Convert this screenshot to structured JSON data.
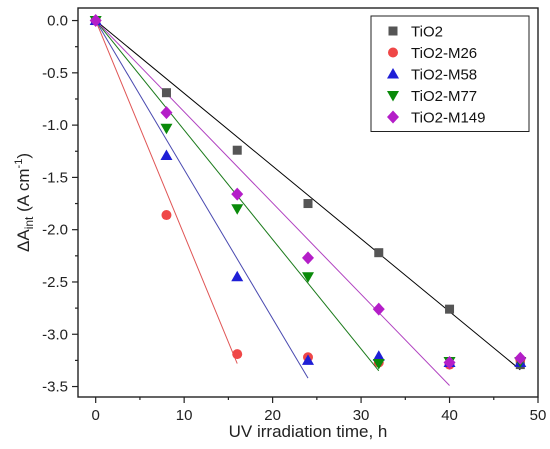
{
  "chart_data": {
    "type": "scatter",
    "xlabel": "UV irradiation time, h",
    "ylabel": {
      "prefix": "ΔA",
      "subscript": "int",
      "units": " (A cm",
      "superscript": "-1",
      "close": ")"
    },
    "xlim": [
      -2,
      50
    ],
    "ylim": [
      -3.6,
      0.12
    ],
    "x_ticks": [
      0,
      10,
      20,
      30,
      40,
      50
    ],
    "y_ticks": [
      0.0,
      -0.5,
      -1.0,
      -1.5,
      -2.0,
      -2.5,
      -3.0,
      -3.5
    ],
    "x_tick_labels": [
      "0",
      "10",
      "20",
      "30",
      "40",
      "50"
    ],
    "y_tick_labels": [
      "0.0",
      "-0.5",
      "-1.0",
      "-1.5",
      "-2.0",
      "-2.5",
      "-3.0",
      "-3.5"
    ],
    "legend_position": "top-right",
    "grid": false,
    "series": [
      {
        "name": "TiO2",
        "marker": "square",
        "color": "#555555",
        "fit_color": "#000000",
        "points": [
          [
            0,
            0.0
          ],
          [
            8,
            -0.69
          ],
          [
            16,
            -1.24
          ],
          [
            24,
            -1.75
          ],
          [
            32,
            -2.22
          ],
          [
            40,
            -2.76
          ],
          [
            48,
            -3.29
          ]
        ],
        "fit_line": [
          [
            0,
            0.0
          ],
          [
            48,
            -3.34
          ]
        ]
      },
      {
        "name": "TiO2-M26",
        "marker": "circle",
        "color": "#ef4747",
        "fit_color": "#e05555",
        "points": [
          [
            0,
            0.0
          ],
          [
            8,
            -1.86
          ],
          [
            16,
            -3.19
          ],
          [
            24,
            -3.22
          ],
          [
            32,
            -3.27
          ],
          [
            40,
            -3.29
          ],
          [
            48,
            -3.24
          ]
        ],
        "fit_line": [
          [
            0,
            0.0
          ],
          [
            16,
            -3.28
          ]
        ]
      },
      {
        "name": "TiO2-M58",
        "marker": "triangle-up",
        "color": "#1f1fd6",
        "fit_color": "#4a4ab0",
        "points": [
          [
            0,
            0.0
          ],
          [
            8,
            -1.29
          ],
          [
            16,
            -2.45
          ],
          [
            24,
            -3.25
          ],
          [
            32,
            -3.21
          ],
          [
            40,
            -3.27
          ],
          [
            48,
            -3.27
          ]
        ],
        "fit_line": [
          [
            0,
            0.0
          ],
          [
            24,
            -3.42
          ]
        ]
      },
      {
        "name": "TiO2-M77",
        "marker": "triangle-down",
        "color": "#0a8a0a",
        "fit_color": "#1a7a1a",
        "points": [
          [
            0,
            0.0
          ],
          [
            8,
            -1.03
          ],
          [
            16,
            -1.8
          ],
          [
            24,
            -2.45
          ],
          [
            32,
            -3.28
          ],
          [
            40,
            -3.26
          ],
          [
            48,
            -3.26
          ]
        ],
        "fit_line": [
          [
            0,
            0.0
          ],
          [
            32,
            -3.35
          ]
        ]
      },
      {
        "name": "TiO2-M149",
        "marker": "diamond",
        "color": "#b41ec8",
        "fit_color": "#b040c0",
        "points": [
          [
            0,
            0.0
          ],
          [
            8,
            -0.88
          ],
          [
            16,
            -1.66
          ],
          [
            24,
            -2.27
          ],
          [
            32,
            -2.76
          ],
          [
            40,
            -3.27
          ],
          [
            48,
            -3.23
          ]
        ],
        "fit_line": [
          [
            0,
            0.0
          ],
          [
            40,
            -3.49
          ]
        ]
      }
    ]
  }
}
